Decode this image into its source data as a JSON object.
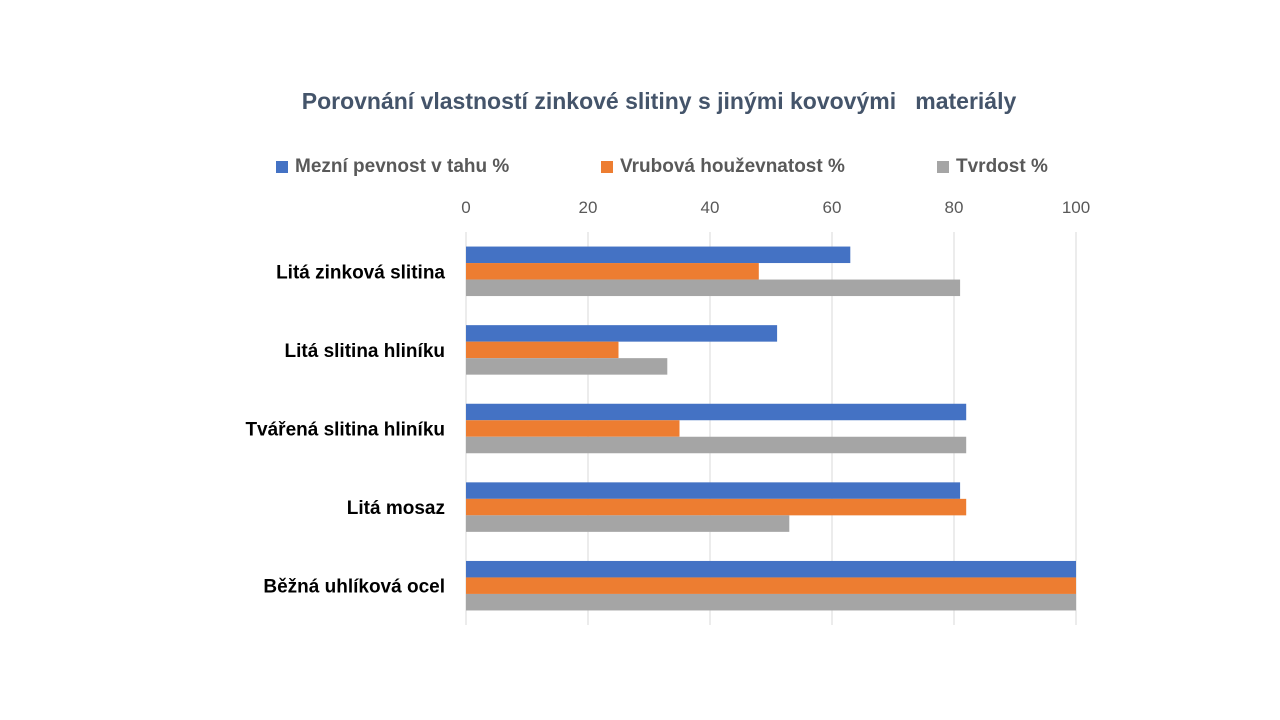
{
  "chart_data": {
    "type": "bar",
    "orientation": "horizontal",
    "title": "Porovnání vlastností zinkové slitiny s jinými kovovými   materiály",
    "categories": [
      "Litá zinková slitina",
      "Litá slitina hliníku",
      "Tvářená slitina hliníku",
      "Litá mosaz",
      "Běžná uhlíková ocel"
    ],
    "series": [
      {
        "name": "Mezní pevnost v tahu %",
        "color": "#4472c4",
        "values": [
          63,
          51,
          82,
          81,
          100
        ]
      },
      {
        "name": "Vrubová houževnatost %",
        "color": "#ed7d31",
        "values": [
          48,
          25,
          35,
          82,
          100
        ]
      },
      {
        "name": "Tvrdost %",
        "color": "#a5a5a5",
        "values": [
          81,
          33,
          82,
          53,
          100
        ]
      }
    ],
    "xlim": [
      0,
      100
    ],
    "xticks": [
      "0",
      "20",
      "40",
      "60",
      "80",
      "100"
    ],
    "xaxis_position": "top",
    "legend_position": "top",
    "grid": true
  }
}
